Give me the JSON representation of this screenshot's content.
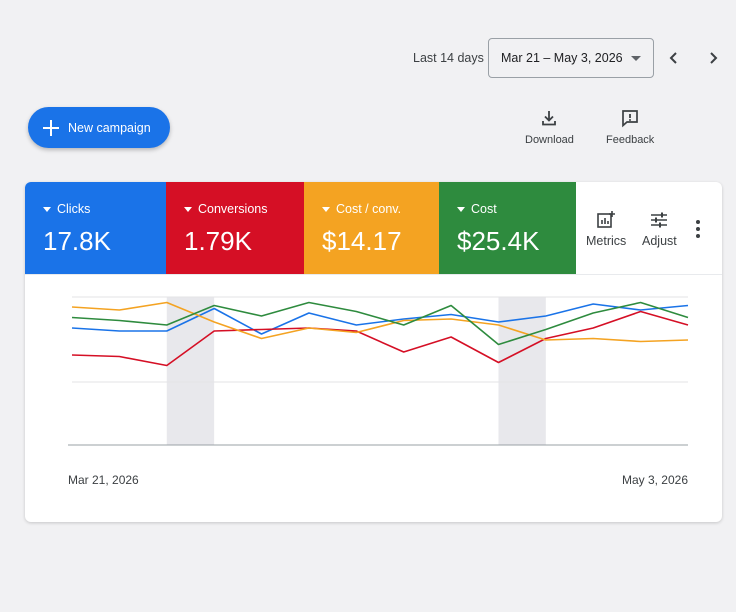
{
  "header": {
    "range_label": "Last 14 days",
    "date_range": "Mar 21 – May 3, 2026",
    "prev_icon": "chevron-left-icon",
    "next_icon": "chevron-right-icon"
  },
  "toolbar": {
    "new_campaign": "New campaign",
    "download": "Download",
    "feedback": "Feedback"
  },
  "metrics": [
    {
      "label": "Clicks",
      "value": "17.8K",
      "color": "#1a73e8"
    },
    {
      "label": "Conversions",
      "value": "1.79K",
      "color": "#d50f25"
    },
    {
      "label": "Cost / conv.",
      "value": "$14.17",
      "color": "#f4a322"
    },
    {
      "label": "Cost",
      "value": "$25.4K",
      "color": "#2e8b3e"
    }
  ],
  "side_actions": {
    "metrics": "Metrics",
    "adjust": "Adjust"
  },
  "chart_data": {
    "type": "line",
    "x_start_label": "Mar 21, 2026",
    "x_end_label": "May 3, 2026",
    "grid": true,
    "y_range": [
      0,
      100
    ],
    "highlighted_ranges": [
      [
        2,
        3
      ],
      [
        9,
        10
      ]
    ],
    "series": [
      {
        "color": "#1a73e8",
        "values": [
          78,
          76,
          76,
          91,
          74,
          88,
          80,
          84,
          87,
          82,
          86,
          94,
          90,
          93
        ]
      },
      {
        "color": "#d50f25",
        "values": [
          60,
          59,
          53,
          76,
          77,
          78,
          76,
          62,
          72,
          55,
          71,
          78,
          89,
          80
        ]
      },
      {
        "color": "#f4a322",
        "values": [
          92,
          90,
          95,
          82,
          71,
          78,
          75,
          83,
          84,
          80,
          70,
          71,
          69,
          70
        ]
      },
      {
        "color": "#2e8b3e",
        "values": [
          85,
          83,
          80,
          93,
          86,
          95,
          89,
          80,
          93,
          67,
          77,
          88,
          95,
          85
        ]
      }
    ]
  }
}
